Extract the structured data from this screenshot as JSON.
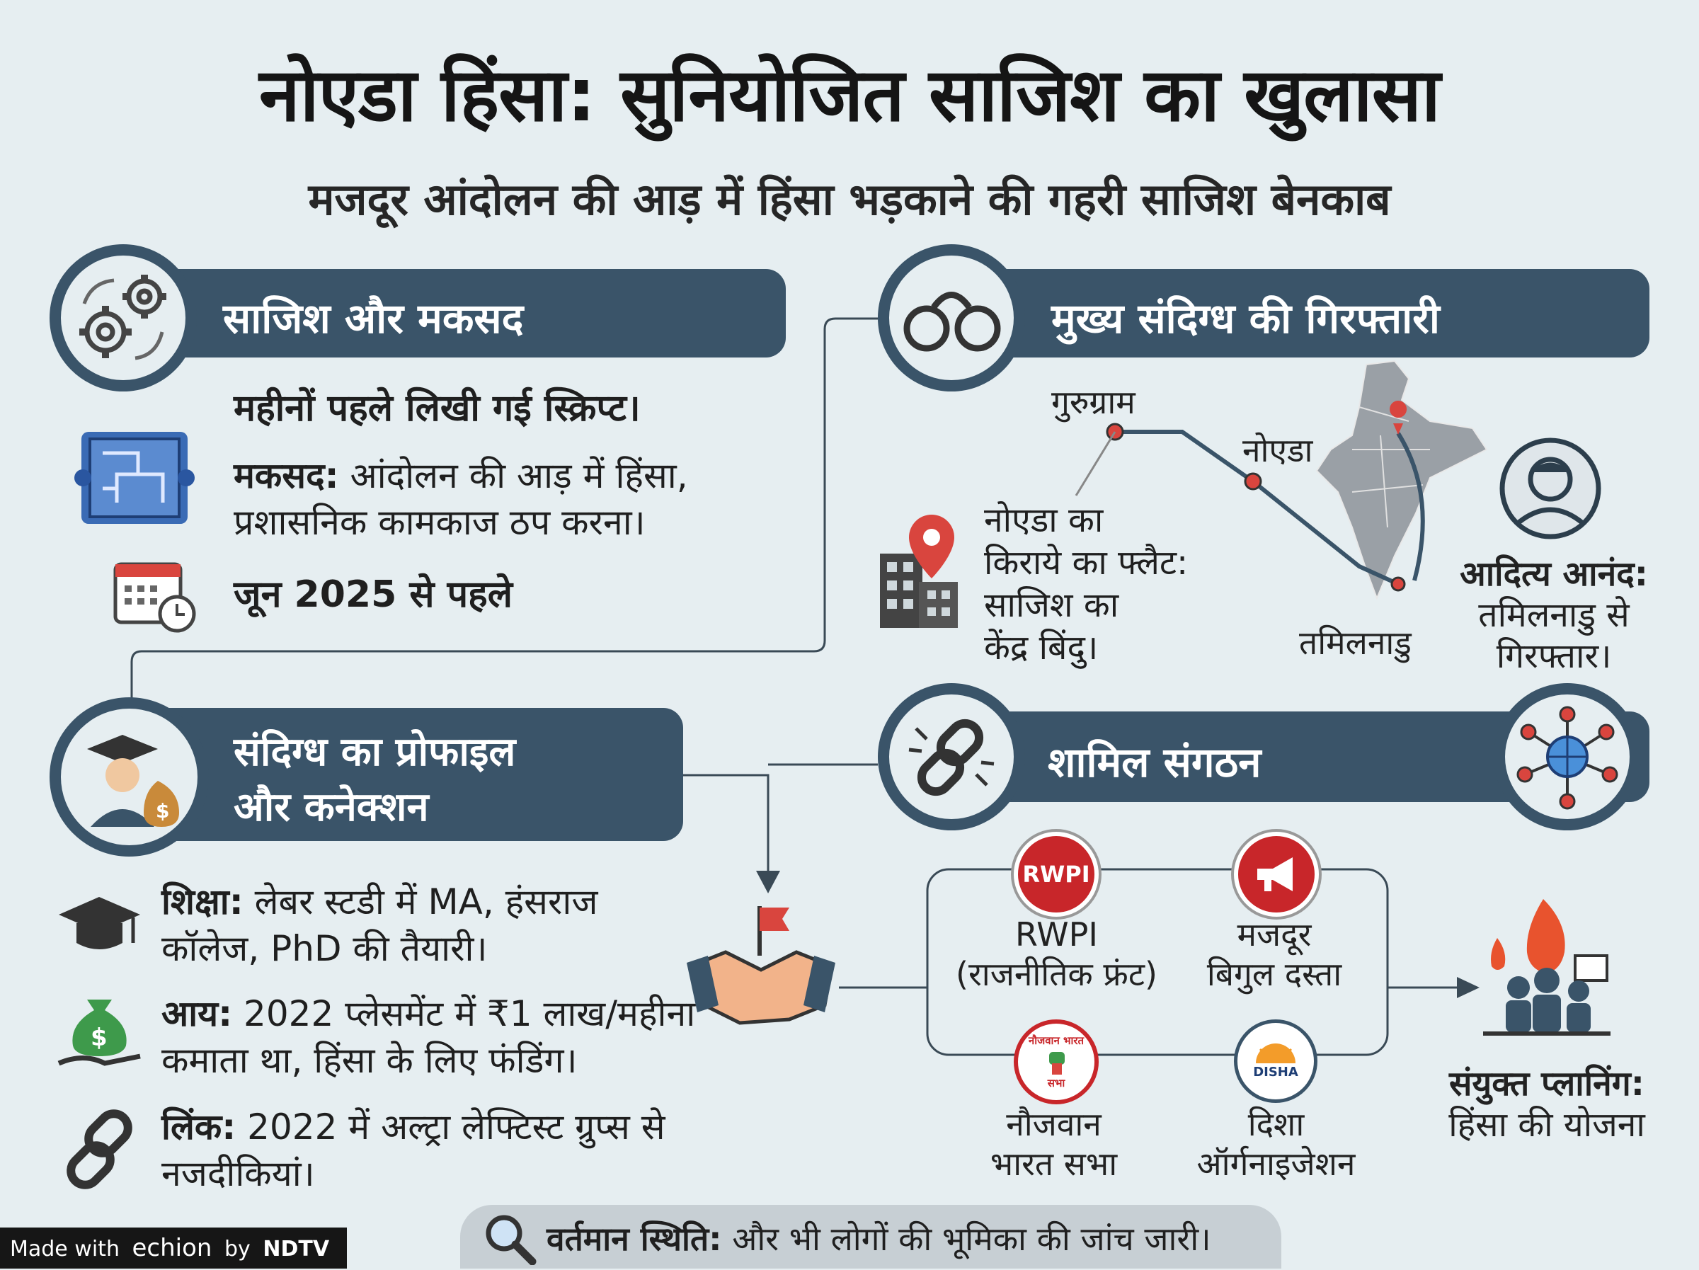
{
  "header": {
    "title": "नोएडा हिंसा: सुनियोजित साजिश का खुलासा",
    "subtitle": "मजदूर आंदोलन की आड़ में हिंसा भड़काने की गहरी साजिश बेनकाब"
  },
  "conspiracy": {
    "heading": "साजिश और मकसद",
    "script_line": "महीनों पहले लिखी गई स्क्रिप्ट।",
    "motive_label": "मकसद:",
    "motive_text_1": " आंदोलन की आड़ में हिंसा,",
    "motive_text_2": "प्रशासनिक कामकाज ठप करना।",
    "date_line": "जून 2025 से पहले"
  },
  "arrest": {
    "heading": "मुख्य संदिग्ध की गिरफ्तारी",
    "place_gurugram": "गुरुग्राम",
    "place_noida": "नोएडा",
    "place_tamilnadu": "तमिलनाडु",
    "flat_1": "नोएडा का",
    "flat_2": "किराये का फ्लैट:",
    "flat_3": "साजिश का",
    "flat_4": "केंद्र बिंदु।",
    "suspect_name": "आदित्य आनंद:",
    "suspect_text_1": "तमिलनाडु से",
    "suspect_text_2": "गिरफ्तार।"
  },
  "profile": {
    "heading_1": "संदिग्ध का प्रोफाइल",
    "heading_2": "और कनेक्शन",
    "edu_label": "शिक्षा:",
    "edu_text_1": " लेबर स्टडी में MA, हंसराज",
    "edu_text_2": "कॉलेज, PhD की तैयारी।",
    "income_label": "आय:",
    "income_text_1": " 2022 प्लेसमेंट में ₹1 लाख/महीना",
    "income_text_2": "कमाता था, हिंसा के लिए फंडिंग।",
    "link_label": "लिंक:",
    "link_text_1": " 2022 में अल्ट्रा लेफ्टिस्ट ग्रुप्स से",
    "link_text_2": "नजदीकियां।"
  },
  "orgs": {
    "heading": "शामिल संगठन",
    "rwpi_badge": "RWPI",
    "rwpi_1": "RWPI",
    "rwpi_2": "(राजनीतिक फ्रंट)",
    "bigul_1": "मजदूर",
    "bigul_2": "बिगुल दस्ता",
    "nbs_badge_top": "नौजवान भारत",
    "nbs_badge_bottom": "सभा",
    "nbs_1": "नौजवान",
    "nbs_2": "भारत सभा",
    "disha_badge": "DISHA",
    "disha_1": "दिशा",
    "disha_2": "ऑर्गनाइजेशन",
    "joint_label": "संयुक्त प्लानिंग:",
    "joint_text": "हिंसा की योजना"
  },
  "footer": {
    "status_label": "वर्तमान स्थिति:",
    "status_text": " और भी लोगों की भूमिका की जांच जारी।",
    "made_with": "Made with",
    "brand": "echion",
    "by": "by",
    "ndtv": "NDTV"
  },
  "colors": {
    "banner": "#3a5469",
    "background": "#e6eef1",
    "badge_red": "#c8262a",
    "pin_red": "#d9453e"
  }
}
